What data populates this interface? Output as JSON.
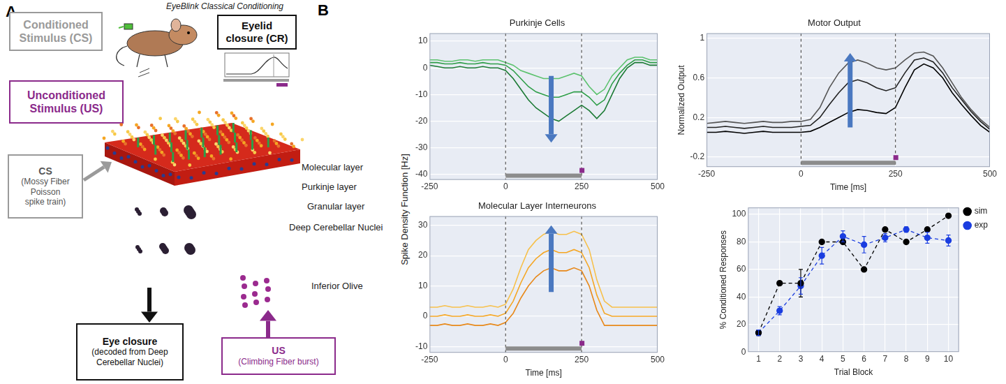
{
  "panel_a": {
    "letter": "A",
    "title": "EyeBlink Classical Conditioning",
    "cs_box": [
      "Conditioned",
      "Stimulus (CS)"
    ],
    "us_box": [
      "Unconditioned",
      "Stimulus (US)"
    ],
    "cr_box": [
      "Eyelid",
      "closure (CR)"
    ],
    "layers": [
      "Molecular layer",
      "Purkinje layer",
      "Granular layer",
      "Deep Cerebellar Nuclei",
      "Inferior Olive"
    ],
    "cs_input": [
      "CS",
      "(Mossy Fiber",
      "Poisson",
      "spike train)"
    ],
    "us_input": [
      "US",
      "(Climbing Fiber burst)"
    ],
    "output": [
      "Eye closure",
      "(decoded from Deep",
      "Cerebellar Nuclei)"
    ]
  },
  "panel_b": {
    "letter": "B",
    "ylabel": "Spike Density Function [Hz]"
  },
  "chart_data": [
    {
      "type": "line",
      "title": "Purkinje Cells",
      "x": [
        -250,
        -225,
        -200,
        -175,
        -150,
        -125,
        -100,
        -75,
        -50,
        -25,
        0,
        25,
        50,
        75,
        100,
        125,
        150,
        175,
        200,
        225,
        250,
        275,
        300,
        325,
        350,
        375,
        400,
        425,
        450,
        475,
        500
      ],
      "xlim": [
        -250,
        500
      ],
      "xticks": [
        -250,
        0,
        250,
        500
      ],
      "ylim": [
        -42,
        13
      ],
      "yticks": [
        -40,
        -30,
        -20,
        -10,
        0,
        10
      ],
      "grid": true,
      "vlines": [
        0,
        250
      ],
      "cs": [
        0,
        250
      ],
      "us": 250,
      "arrow": {
        "x": 150,
        "from": -3,
        "to": -28
      },
      "series": [
        {
          "color": "#5cc26e",
          "values": [
            3,
            3,
            2.5,
            2.5,
            3,
            3,
            2.5,
            3,
            3,
            3,
            2,
            1,
            -1,
            -2,
            -3,
            -4,
            -4,
            -4,
            -3,
            -2,
            -3,
            -7,
            -10,
            -8,
            -3,
            0,
            3,
            4,
            4,
            3,
            3
          ]
        },
        {
          "color": "#2e9e48",
          "values": [
            2,
            2,
            1.5,
            1.5,
            2,
            1.5,
            1.5,
            2,
            1.5,
            1.5,
            1,
            -1,
            -4,
            -7,
            -9,
            -10,
            -11,
            -11,
            -10,
            -9,
            -9,
            -11,
            -14,
            -12,
            -6,
            -2,
            1,
            3,
            3,
            2,
            2
          ]
        },
        {
          "color": "#1b7a34",
          "values": [
            1,
            0.5,
            0,
            0,
            0.5,
            0,
            0,
            0.5,
            0,
            0,
            -1,
            -4,
            -8,
            -12,
            -15,
            -17,
            -19,
            -20,
            -18,
            -16,
            -14,
            -16,
            -19,
            -16,
            -10,
            -4,
            0,
            2,
            2,
            1,
            1
          ]
        }
      ]
    },
    {
      "type": "line",
      "title": "Motor Output",
      "xlabel": "Time [ms]",
      "ylabel": "Normalized Output",
      "x": [
        -250,
        -225,
        -200,
        -175,
        -150,
        -125,
        -100,
        -75,
        -50,
        -25,
        0,
        25,
        50,
        75,
        100,
        125,
        150,
        175,
        200,
        225,
        250,
        275,
        300,
        325,
        350,
        375,
        400,
        425,
        450,
        475,
        500
      ],
      "xlim": [
        -250,
        500
      ],
      "xticks": [
        -250,
        0,
        250,
        500
      ],
      "ylim": [
        -0.3,
        1.05
      ],
      "yticks": [
        -0.2,
        0.2,
        0.6,
        1
      ],
      "grid": true,
      "vlines": [
        0,
        250
      ],
      "cs": [
        0,
        250
      ],
      "us": 250,
      "arrow": {
        "x": 130,
        "from": 0.1,
        "to": 0.85
      },
      "series": [
        {
          "color": "#555555",
          "values": [
            0.14,
            0.15,
            0.16,
            0.15,
            0.14,
            0.15,
            0.16,
            0.15,
            0.15,
            0.16,
            0.16,
            0.18,
            0.3,
            0.5,
            0.65,
            0.75,
            0.78,
            0.75,
            0.7,
            0.68,
            0.7,
            0.78,
            0.85,
            0.86,
            0.82,
            0.7,
            0.55,
            0.4,
            0.28,
            0.18,
            0.1
          ]
        },
        {
          "color": "#222222",
          "values": [
            0.1,
            0.1,
            0.11,
            0.1,
            0.09,
            0.1,
            0.11,
            0.1,
            0.1,
            0.1,
            0.11,
            0.12,
            0.2,
            0.33,
            0.45,
            0.55,
            0.58,
            0.55,
            0.5,
            0.47,
            0.5,
            0.65,
            0.78,
            0.8,
            0.76,
            0.65,
            0.5,
            0.38,
            0.26,
            0.16,
            0.08
          ]
        },
        {
          "color": "#000000",
          "values": [
            0.05,
            0.05,
            0.06,
            0.05,
            0.04,
            0.05,
            0.06,
            0.05,
            0.05,
            0.05,
            0.05,
            0.06,
            0.1,
            0.15,
            0.2,
            0.25,
            0.28,
            0.27,
            0.25,
            0.24,
            0.3,
            0.5,
            0.68,
            0.74,
            0.7,
            0.6,
            0.45,
            0.33,
            0.22,
            0.12,
            0.05
          ]
        }
      ]
    },
    {
      "type": "line",
      "title": "Molecular Layer Interneurons",
      "xlabel": "Time [ms]",
      "x": [
        -250,
        -225,
        -200,
        -175,
        -150,
        -125,
        -100,
        -75,
        -50,
        -25,
        0,
        25,
        50,
        75,
        100,
        125,
        150,
        175,
        200,
        225,
        250,
        275,
        300,
        325,
        350,
        375,
        400,
        425,
        450,
        475,
        500
      ],
      "xlim": [
        -250,
        500
      ],
      "xticks": [
        -250,
        0,
        250,
        500
      ],
      "ylim": [
        -12,
        33
      ],
      "yticks": [
        -10,
        0,
        10,
        20,
        30
      ],
      "grid": true,
      "vlines": [
        0,
        250
      ],
      "cs": [
        0,
        250
      ],
      "us": 250,
      "arrow": {
        "x": 150,
        "from": 8,
        "to": 30
      },
      "series": [
        {
          "color": "#f7c04a",
          "values": [
            3,
            3,
            3.5,
            3,
            3,
            3.5,
            3,
            3,
            3.5,
            3,
            4,
            9,
            16,
            22,
            25,
            27,
            28,
            27,
            27,
            28,
            27,
            22,
            12,
            5,
            3,
            3,
            3,
            3,
            3,
            3,
            3
          ]
        },
        {
          "color": "#f5a623",
          "values": [
            0,
            0,
            0.5,
            0,
            0,
            0.5,
            0,
            0,
            0.5,
            0,
            1,
            5,
            11,
            16,
            19,
            21,
            22,
            21,
            21,
            22,
            21,
            16,
            7,
            1,
            0,
            0,
            0,
            0,
            0,
            0,
            0
          ]
        },
        {
          "color": "#e8891a",
          "values": [
            -3,
            -3,
            -2.5,
            -3,
            -3,
            -2.5,
            -3,
            -3,
            -2.5,
            -3,
            -2,
            1,
            6,
            10,
            13,
            15,
            16,
            15,
            15,
            16,
            15,
            10,
            2,
            -3,
            -3,
            -3,
            -3,
            -3,
            -3,
            -3,
            -3
          ]
        }
      ]
    },
    {
      "type": "line",
      "xlabel": "Trial Block",
      "ylabel": "% Conditioned Responses",
      "x": [
        1,
        2,
        3,
        4,
        5,
        6,
        7,
        8,
        9,
        10
      ],
      "xlim": [
        0.5,
        10.5
      ],
      "xticks": [
        1,
        2,
        3,
        4,
        5,
        6,
        7,
        8,
        9,
        10
      ],
      "ylim": [
        0,
        105
      ],
      "yticks": [
        0,
        20,
        40,
        60,
        80,
        100
      ],
      "grid": true,
      "legend": "right",
      "series": [
        {
          "name": "sim",
          "color": "#000000",
          "marker": "circle",
          "line_style": "dashed",
          "values": [
            14,
            50,
            50,
            80,
            80,
            60,
            89,
            80,
            89,
            99
          ],
          "errors": [
            2,
            null,
            10,
            null,
            null,
            null,
            null,
            null,
            null,
            null
          ]
        },
        {
          "name": "exp",
          "color": "#1a3de0",
          "marker": "circle",
          "line_style": "dashed",
          "values": [
            14,
            30,
            48,
            70,
            84,
            78,
            83,
            89,
            83,
            81
          ],
          "errors": [
            2,
            3,
            6,
            6,
            4,
            6,
            3,
            2,
            4,
            4
          ]
        }
      ]
    }
  ]
}
